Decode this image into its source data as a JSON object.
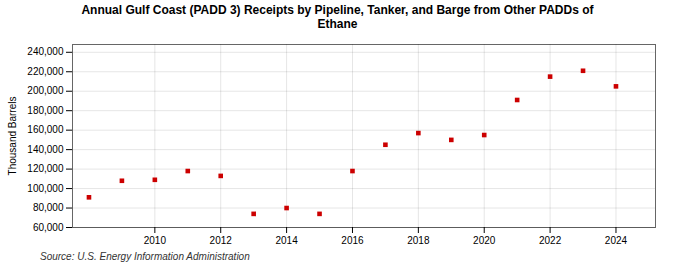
{
  "chart_data": {
    "type": "scatter",
    "title": "Annual Gulf Coast (PADD 3) Receipts by Pipeline, Tanker, and Barge from Other PADDs of\nEthane",
    "ylabel": "Thousand Barrels",
    "source": "Source: U.S. Energy Information Administration",
    "x": [
      2008,
      2009,
      2010,
      2011,
      2012,
      2013,
      2014,
      2015,
      2016,
      2017,
      2018,
      2019,
      2020,
      2021,
      2022,
      2023,
      2024
    ],
    "values": [
      91000,
      108000,
      109000,
      118000,
      113000,
      74000,
      80000,
      74000,
      118000,
      145000,
      157000,
      150000,
      155000,
      191000,
      215000,
      221000,
      205000
    ],
    "color": "#cc0000",
    "marker": "square",
    "xlim": [
      2007.5,
      2025.2
    ],
    "xticks": [
      2010,
      2012,
      2014,
      2016,
      2018,
      2020,
      2022,
      2024
    ],
    "ylim": [
      60000,
      248000
    ],
    "yticks": [
      {
        "value": 60000,
        "label": "60,000"
      },
      {
        "value": 80000,
        "label": "80,000"
      },
      {
        "value": 100000,
        "label": "100,000"
      },
      {
        "value": 120000,
        "label": "120,000"
      },
      {
        "value": 140000,
        "label": "140,000"
      },
      {
        "value": 160000,
        "label": "160,000"
      },
      {
        "value": 180000,
        "label": "180,000"
      },
      {
        "value": 200000,
        "label": "200,000"
      },
      {
        "value": 220000,
        "label": "220,000"
      },
      {
        "value": 240000,
        "label": "240,000"
      }
    ],
    "grid": true
  }
}
